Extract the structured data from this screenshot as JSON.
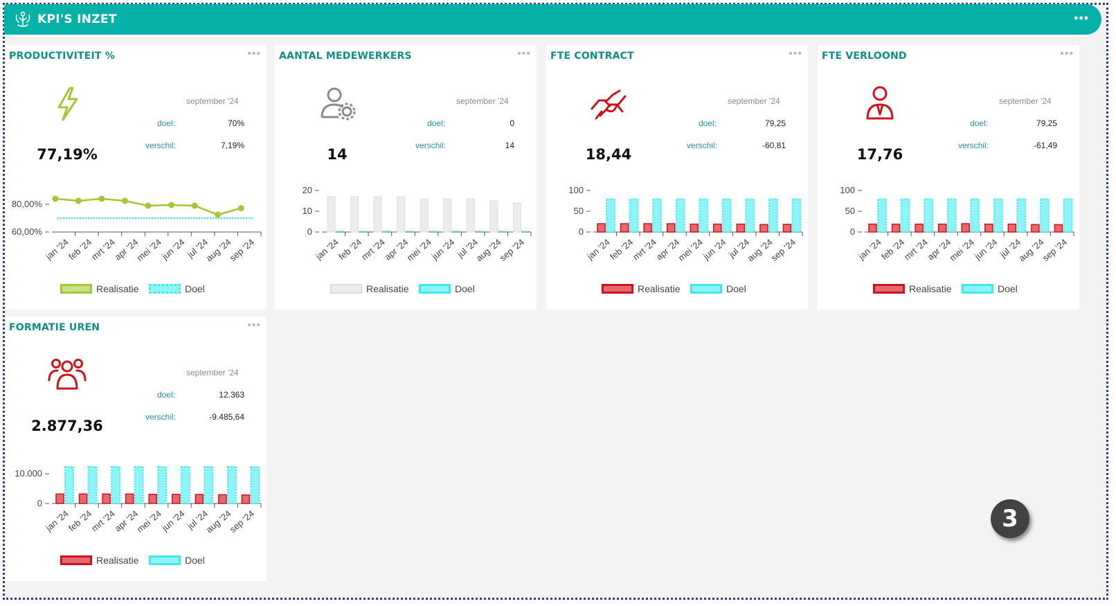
{
  "header": {
    "title": "KPI'S INZET"
  },
  "months": [
    "jan '24",
    "feb '24",
    "mrt '24",
    "apr '24",
    "mei '24",
    "jun '24",
    "jul '24",
    "aug '24",
    "sep '24"
  ],
  "labels": {
    "doel": "doel:",
    "verschil": "verschil:",
    "realisatie": "Realisatie",
    "doel_legend": "Doel"
  },
  "cards": [
    {
      "title": "PRODUCTIVITEIT %",
      "month": "september '24",
      "doel": "70%",
      "verschil": "7,19%",
      "value": "77,19%",
      "icon": "lightning-icon",
      "icon_color": "#a3c635"
    },
    {
      "title": "AANTAL MEDEWERKERS",
      "month": "september '24",
      "doel": "0",
      "verschil": "14",
      "value": "14",
      "icon": "user-gear-icon",
      "icon_color": "#8a8a8a"
    },
    {
      "title": "FTE CONTRACT",
      "month": "september '24",
      "doel": "79,25",
      "verschil": "-60,81",
      "value": "18,44",
      "icon": "handshake-icon",
      "icon_color": "#d0111b"
    },
    {
      "title": "FTE VERLOOND",
      "month": "september '24",
      "doel": "79,25",
      "verschil": "-61,49",
      "value": "17,76",
      "icon": "employee-icon",
      "icon_color": "#d0111b"
    },
    {
      "title": "FORMATIE UREN",
      "month": "september '24",
      "doel": "12.363",
      "verschil": "-9.485,64",
      "value": "2.877,36",
      "icon": "group-icon",
      "icon_color": "#d0111b"
    }
  ],
  "badge": "3",
  "chart_data": [
    {
      "type": "line",
      "title": "PRODUCTIVITEIT %",
      "categories": [
        "jan '24",
        "feb '24",
        "mrt '24",
        "apr '24",
        "mei '24",
        "jun '24",
        "jul '24",
        "aug '24",
        "sep '24"
      ],
      "series": [
        {
          "name": "Realisatie",
          "values": [
            84,
            82.5,
            84,
            82.5,
            79,
            79.5,
            79,
            72.5,
            77.19
          ]
        },
        {
          "name": "Doel",
          "values": [
            70,
            70,
            70,
            70,
            70,
            70,
            70,
            70,
            70
          ]
        }
      ],
      "yticks": [
        "80,00%",
        "60,00%"
      ],
      "ylim": [
        60,
        90
      ],
      "color": "#a3c635",
      "target_color": "#3ee8ee"
    },
    {
      "type": "bar",
      "title": "AANTAL MEDEWERKERS",
      "categories": [
        "jan '24",
        "feb '24",
        "mrt '24",
        "apr '24",
        "mei '24",
        "jun '24",
        "jul '24",
        "aug '24",
        "sep '24"
      ],
      "series": [
        {
          "name": "Realisatie",
          "values": [
            17,
            17,
            17,
            17,
            16,
            16,
            16,
            15,
            14
          ]
        },
        {
          "name": "Doel",
          "values": [
            0,
            0,
            0,
            0,
            0,
            0,
            0,
            0,
            0
          ]
        }
      ],
      "yticks": [
        "20",
        "10",
        "0"
      ],
      "ylim": [
        0,
        20
      ],
      "color": "#e6e6e6",
      "target_color": "#3ee8ee"
    },
    {
      "type": "bar",
      "title": "FTE CONTRACT",
      "categories": [
        "jan '24",
        "feb '24",
        "mrt '24",
        "apr '24",
        "mei '24",
        "jun '24",
        "jul '24",
        "aug '24",
        "sep '24"
      ],
      "series": [
        {
          "name": "Realisatie",
          "values": [
            20,
            20,
            20,
            20,
            19,
            19,
            19,
            18,
            18.44
          ]
        },
        {
          "name": "Doel",
          "values": [
            79.25,
            79.25,
            79.25,
            79.25,
            79.25,
            79.25,
            79.25,
            79.25,
            79.25
          ]
        }
      ],
      "yticks": [
        "100",
        "50",
        "0"
      ],
      "ylim": [
        0,
        100
      ],
      "color": "#d0111b",
      "target_color": "#3ee8ee"
    },
    {
      "type": "bar",
      "title": "FTE VERLOOND",
      "categories": [
        "jan '24",
        "feb '24",
        "mrt '24",
        "apr '24",
        "mei '24",
        "jun '24",
        "jul '24",
        "aug '24",
        "sep '24"
      ],
      "series": [
        {
          "name": "Realisatie",
          "values": [
            19,
            19,
            19,
            19,
            20,
            19,
            19,
            18,
            17.76
          ]
        },
        {
          "name": "Doel",
          "values": [
            79.25,
            79.25,
            79.25,
            79.25,
            79.25,
            79.25,
            79.25,
            79.25,
            79.25
          ]
        }
      ],
      "yticks": [
        "100",
        "50",
        "0"
      ],
      "ylim": [
        0,
        100
      ],
      "color": "#d0111b",
      "target_color": "#3ee8ee"
    },
    {
      "type": "bar",
      "title": "FORMATIE UREN",
      "categories": [
        "jan '24",
        "feb '24",
        "mrt '24",
        "apr '24",
        "mei '24",
        "jun '24",
        "jul '24",
        "aug '24",
        "sep '24"
      ],
      "series": [
        {
          "name": "Realisatie",
          "values": [
            3200,
            3200,
            3200,
            3200,
            3100,
            3100,
            3050,
            2950,
            2877.36
          ]
        },
        {
          "name": "Doel",
          "values": [
            12363,
            12363,
            12363,
            12363,
            12363,
            12363,
            12363,
            12363,
            12363
          ]
        }
      ],
      "yticks": [
        "10.000",
        "0"
      ],
      "ylim": [
        0,
        14000
      ],
      "color": "#d0111b",
      "target_color": "#3ee8ee"
    }
  ]
}
